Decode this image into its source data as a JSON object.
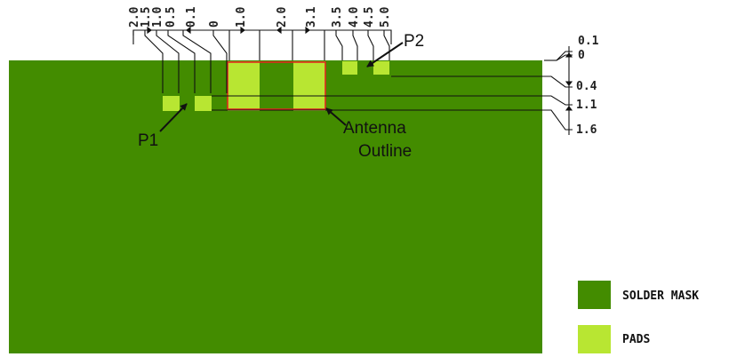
{
  "colors": {
    "solder_mask": "#438c00",
    "pads": "#b8e632",
    "antenna_outline": "#e0281e",
    "dimension_lines": "#111111"
  },
  "top_dimensions": [
    "2.0",
    "1.5",
    "1.0",
    "0.5",
    "0.1",
    "0",
    "1.0",
    "2.0",
    "3.1",
    "3.5",
    "4.0",
    "4.5",
    "5.0"
  ],
  "right_dimensions": [
    "0.1",
    "0",
    "0.4",
    "1.1",
    "1.6"
  ],
  "callouts": {
    "p1": "P1",
    "p2": "P2",
    "antenna_line1": "Antenna",
    "antenna_line2": "Outline"
  },
  "legend": {
    "solder_mask_label": "SOLDER MASK",
    "pads_label": "PADS"
  }
}
